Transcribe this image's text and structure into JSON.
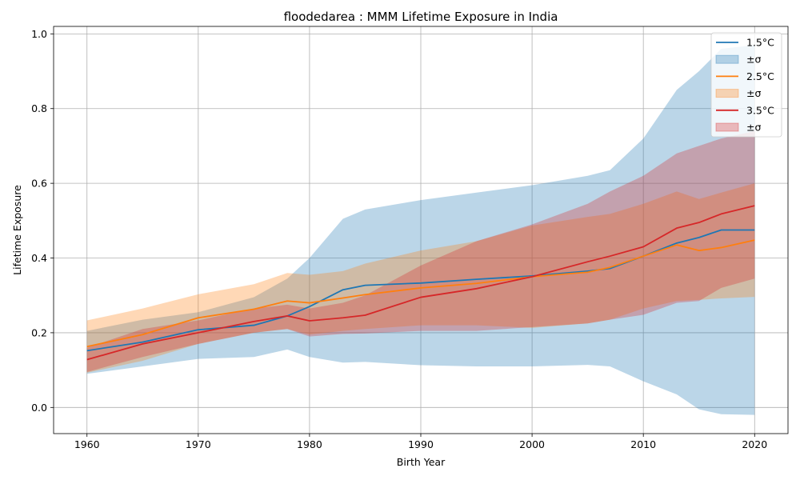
{
  "chart_data": {
    "type": "line",
    "title": "floodedarea : MMM Lifetime Exposure in India",
    "xlabel": "Birth Year",
    "ylabel": "Lifetime Exposure",
    "xlim": [
      1957,
      2023
    ],
    "ylim": [
      -0.07,
      1.02
    ],
    "x_ticks": [
      1960,
      1970,
      1980,
      1990,
      2000,
      2010,
      2020
    ],
    "y_ticks": [
      0.0,
      0.2,
      0.4,
      0.6,
      0.8,
      1.0
    ],
    "x_tick_labels": [
      "1960",
      "1970",
      "1980",
      "1990",
      "2000",
      "2010",
      "2020"
    ],
    "y_tick_labels": [
      "0.0",
      "0.2",
      "0.4",
      "0.6",
      "0.8",
      "1.0"
    ],
    "grid": true,
    "legend_position": "top-right",
    "x": [
      1960,
      1965,
      1970,
      1975,
      1978,
      1980,
      1983,
      1985,
      1990,
      1995,
      2000,
      2005,
      2007,
      2010,
      2013,
      2015,
      2017,
      2020
    ],
    "series": [
      {
        "name": "1.5°C",
        "band_label": "±σ",
        "color": "#1f77b4",
        "values": [
          0.152,
          0.175,
          0.208,
          0.22,
          0.245,
          0.27,
          0.315,
          0.327,
          0.333,
          0.343,
          0.352,
          0.365,
          0.372,
          0.405,
          0.44,
          0.455,
          0.475,
          0.475
        ],
        "lower": [
          0.09,
          0.11,
          0.13,
          0.135,
          0.155,
          0.135,
          0.12,
          0.122,
          0.113,
          0.11,
          0.11,
          0.114,
          0.11,
          0.07,
          0.035,
          -0.005,
          -0.018,
          -0.02
        ],
        "upper": [
          0.205,
          0.235,
          0.255,
          0.295,
          0.345,
          0.4,
          0.505,
          0.53,
          0.555,
          0.575,
          0.595,
          0.62,
          0.635,
          0.72,
          0.85,
          0.9,
          0.96,
          0.97
        ]
      },
      {
        "name": "2.5°C",
        "band_label": "±σ",
        "color": "#ff7f0e",
        "values": [
          0.163,
          0.195,
          0.24,
          0.263,
          0.285,
          0.28,
          0.293,
          0.302,
          0.32,
          0.332,
          0.35,
          0.362,
          0.375,
          0.405,
          0.435,
          0.42,
          0.428,
          0.448
        ],
        "lower": [
          0.093,
          0.125,
          0.17,
          0.2,
          0.21,
          0.195,
          0.205,
          0.21,
          0.22,
          0.22,
          0.213,
          0.225,
          0.235,
          0.265,
          0.285,
          0.288,
          0.292,
          0.296
        ],
        "upper": [
          0.233,
          0.265,
          0.303,
          0.33,
          0.36,
          0.355,
          0.365,
          0.385,
          0.42,
          0.445,
          0.487,
          0.51,
          0.518,
          0.545,
          0.578,
          0.558,
          0.575,
          0.6
        ]
      },
      {
        "name": "3.5°C",
        "band_label": "±σ",
        "color": "#d62728",
        "values": [
          0.128,
          0.17,
          0.2,
          0.23,
          0.245,
          0.232,
          0.24,
          0.247,
          0.295,
          0.318,
          0.35,
          0.39,
          0.405,
          0.43,
          0.48,
          0.495,
          0.518,
          0.54
        ],
        "lower": [
          0.095,
          0.135,
          0.17,
          0.2,
          0.21,
          0.19,
          0.197,
          0.198,
          0.205,
          0.205,
          0.215,
          0.225,
          0.235,
          0.248,
          0.28,
          0.285,
          0.32,
          0.345
        ],
        "upper": [
          0.16,
          0.21,
          0.233,
          0.265,
          0.275,
          0.265,
          0.28,
          0.3,
          0.38,
          0.445,
          0.49,
          0.545,
          0.578,
          0.62,
          0.68,
          0.7,
          0.72,
          0.74
        ]
      }
    ]
  }
}
